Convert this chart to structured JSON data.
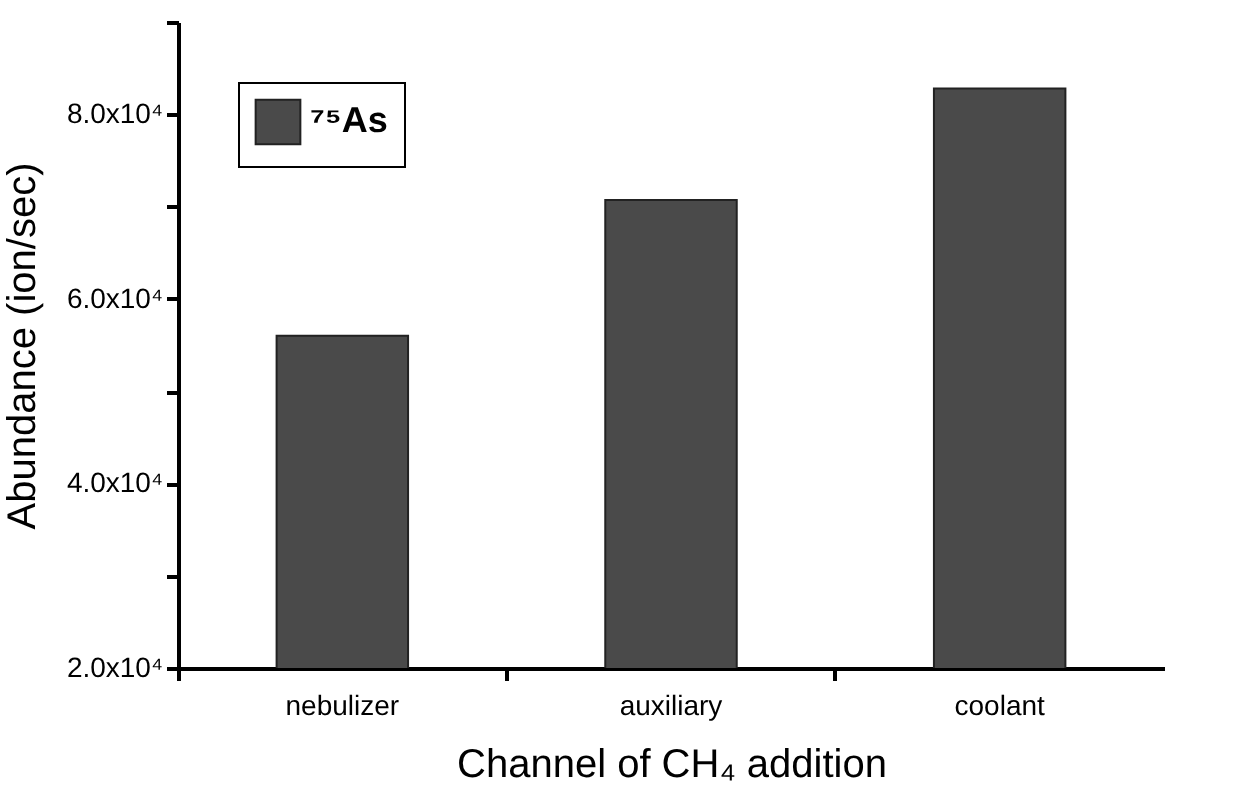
{
  "chart_data": {
    "type": "bar",
    "xlabel": "Channel of CH₄ addition",
    "ylabel": "Abundance (ion/sec)",
    "categories": [
      "nebulizer",
      "auxiliary",
      "coolant"
    ],
    "series": [
      {
        "name": "⁷⁵As",
        "color": "#4a4a4a",
        "values": [
          56000,
          70700,
          82800
        ]
      }
    ],
    "ylim": [
      20000,
      90000
    ],
    "yticks": [
      {
        "value": 20000,
        "label": "2.0x10⁴"
      },
      {
        "value": 30000,
        "label": null
      },
      {
        "value": 40000,
        "label": "4.0x10⁴"
      },
      {
        "value": 50000,
        "label": null
      },
      {
        "value": 60000,
        "label": "6.0x10⁴"
      },
      {
        "value": 70000,
        "label": null
      },
      {
        "value": 80000,
        "label": "8.0x10⁴"
      },
      {
        "value": 90000,
        "label": null
      }
    ],
    "grid": false,
    "legend": "top left"
  }
}
